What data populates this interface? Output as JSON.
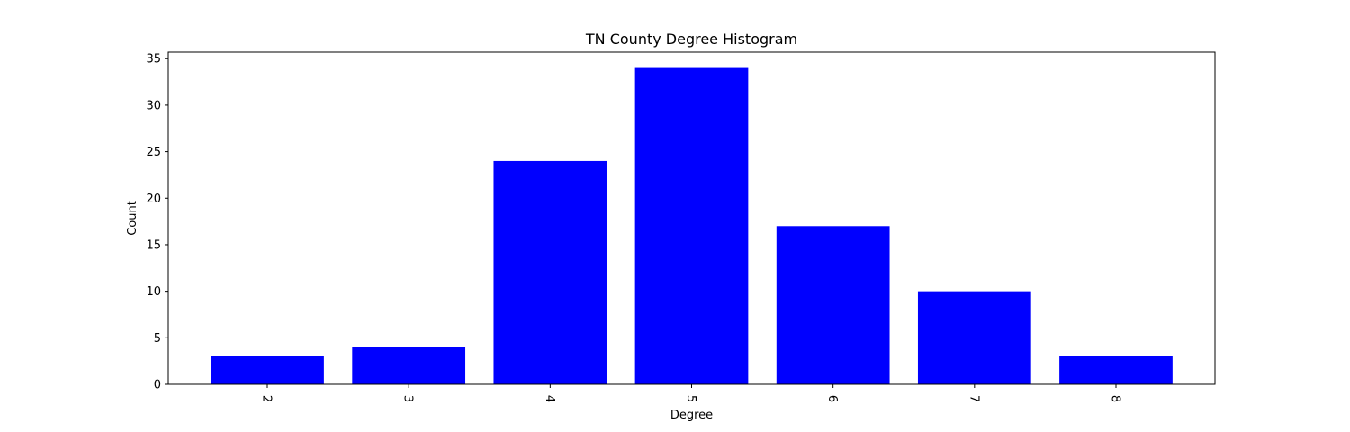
{
  "chart_data": {
    "type": "bar",
    "title": "TN County Degree Histogram",
    "xlabel": "Degree",
    "ylabel": "Count",
    "categories": [
      "2",
      "3",
      "4",
      "5",
      "6",
      "7",
      "8"
    ],
    "values": [
      3,
      4,
      24,
      34,
      17,
      10,
      3
    ],
    "ylim": [
      0,
      35.7
    ],
    "yticks": [
      "0",
      "5",
      "10",
      "15",
      "20",
      "25",
      "30",
      "35"
    ],
    "xtick_rotation": "-90",
    "bar_color": "#0000ff",
    "grid": false,
    "legend": "none"
  }
}
